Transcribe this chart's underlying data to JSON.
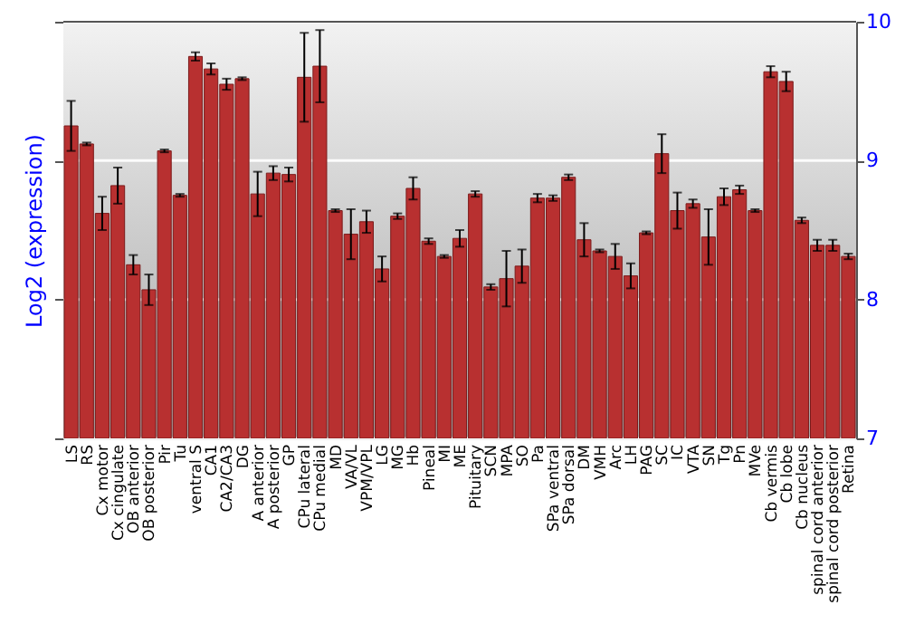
{
  "chart_data": {
    "type": "bar",
    "ylabel": "Log2 (expression)",
    "categories": [
      "LS",
      "RS",
      "Cx motor",
      "Cx cingulate",
      "OB anterior",
      "OB posterior",
      "Pir",
      "Tu",
      "ventral S",
      "CA1",
      "CA2/CA3",
      "DG",
      "A anterior",
      "A posterior",
      "GP",
      "CPu lateral",
      "CPu medial",
      "MD",
      "VA/VL",
      "VPM/VPL",
      "LG",
      "MG",
      "Hb",
      "Pineal",
      "MI",
      "ME",
      "Pituitary",
      "SCN",
      "MPA",
      "SO",
      "Pa",
      "SPa ventral",
      "SPa dorsal",
      "DM",
      "VMH",
      "Arc",
      "LH",
      "PAG",
      "SC",
      "IC",
      "VTA",
      "SN",
      "Tg",
      "Pn",
      "MVe",
      "Cb vermis",
      "Cb lobe",
      "Cb nucleus",
      "spinal cord anterior",
      "spinal cord posterior",
      "Retina"
    ],
    "values": [
      9.25,
      9.12,
      8.62,
      8.82,
      8.25,
      8.07,
      9.07,
      8.75,
      9.75,
      9.66,
      9.55,
      9.59,
      8.76,
      8.91,
      8.9,
      9.6,
      9.68,
      8.64,
      8.47,
      8.56,
      8.22,
      8.6,
      8.8,
      8.42,
      8.31,
      8.44,
      8.76,
      8.09,
      8.15,
      8.24,
      8.73,
      8.73,
      8.88,
      8.43,
      8.35,
      8.31,
      8.17,
      8.48,
      9.05,
      8.64,
      8.69,
      8.45,
      8.74,
      8.79,
      8.64,
      9.64,
      9.57,
      8.57,
      8.39,
      8.39,
      8.31
    ],
    "errors": [
      0.18,
      0.01,
      0.12,
      0.13,
      0.07,
      0.11,
      0.01,
      0.01,
      0.03,
      0.04,
      0.04,
      0.01,
      0.16,
      0.05,
      0.05,
      0.32,
      0.26,
      0.01,
      0.18,
      0.08,
      0.09,
      0.02,
      0.08,
      0.02,
      0.01,
      0.06,
      0.02,
      0.02,
      0.2,
      0.12,
      0.03,
      0.02,
      0.02,
      0.12,
      0.01,
      0.09,
      0.09,
      0.01,
      0.14,
      0.13,
      0.03,
      0.2,
      0.06,
      0.03,
      0.01,
      0.04,
      0.07,
      0.02,
      0.04,
      0.04,
      0.02
    ],
    "color": "#b83030",
    "ylim": [
      7,
      10
    ],
    "yticks": [
      7,
      8,
      9,
      10
    ],
    "grid": "y"
  }
}
